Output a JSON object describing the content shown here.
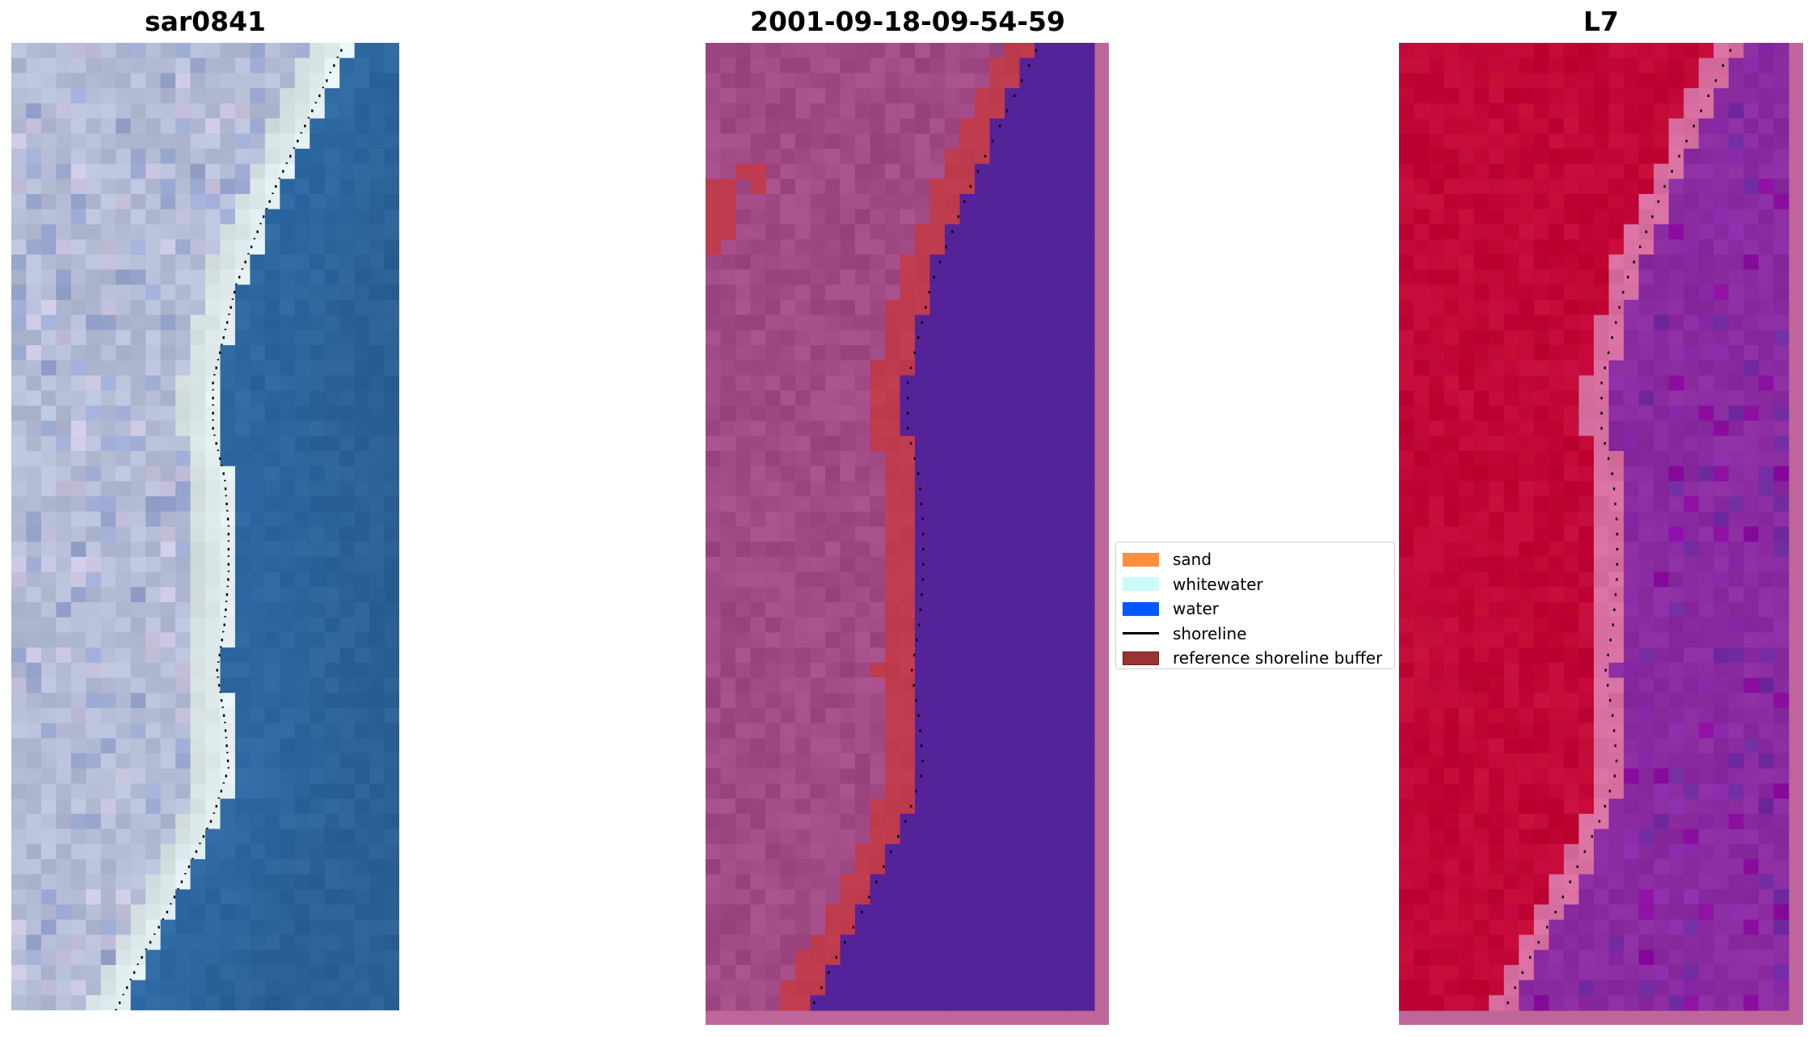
{
  "panels": [
    {
      "title": "sar0841",
      "content": "RGB satellite image of a beach with sand, white surf and ocean, shoreline shown as black dots"
    },
    {
      "title": "2001-09-18-09-54-59",
      "content": "classified image: water pixels in dark purple-blue, reference shoreline buffer in red, shoreline as black dots"
    },
    {
      "title": "L7",
      "content": "false colour index image: land in crimson, water in purple, shoreline as black dots"
    }
  ],
  "legend": {
    "items": [
      {
        "label": "sand",
        "kind": "patch",
        "color": "#ff8f3d"
      },
      {
        "label": "whitewater",
        "kind": "patch",
        "color": "#c9fbfb"
      },
      {
        "label": "water",
        "kind": "patch",
        "color": "#0058ff"
      },
      {
        "label": "shoreline",
        "kind": "line",
        "color": "#000000"
      },
      {
        "label": "reference shoreline buffer",
        "kind": "patch",
        "color": "#9c3333"
      }
    ]
  },
  "colors": {
    "rgb_sand": "#b4bcd6",
    "rgb_surf": "#e8f4f6",
    "rgb_water": "#2f6aa4",
    "class_land": "#a24a86",
    "class_buffer": "#bf3b4e",
    "class_water": "#552399",
    "class_border": "#be6699",
    "index_land": "#c10433",
    "index_water": "#8a2ba0",
    "index_border": "#be6699"
  }
}
